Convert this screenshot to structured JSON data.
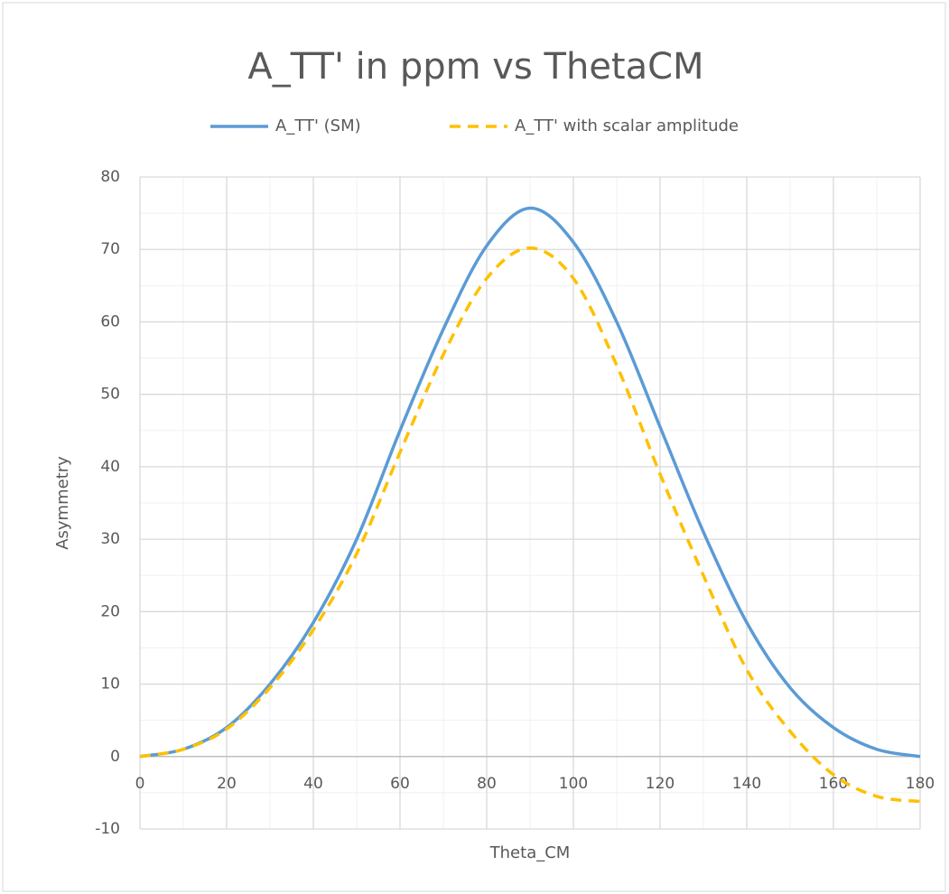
{
  "chart_data": {
    "type": "line",
    "title": "A_TT' in ppm vs ThetaCM",
    "x_label": "Theta_CM",
    "y_label": "Asymmetry",
    "x": [
      0,
      10,
      20,
      30,
      40,
      50,
      60,
      70,
      80,
      90,
      100,
      110,
      120,
      130,
      140,
      150,
      160,
      170,
      180
    ],
    "series": [
      {
        "name": "A_TT' (SM)",
        "color": "#5b9bd5",
        "dash": false,
        "values": [
          0,
          1,
          4,
          10,
          18.5,
          30,
          45,
          59,
          70.5,
          75.7,
          71,
          60,
          45.5,
          31,
          18.5,
          9.5,
          4,
          1,
          0
        ]
      },
      {
        "name": "A_TT' with scalar amplitude",
        "color": "#ffc000",
        "dash": true,
        "values": [
          0,
          1,
          3.8,
          9.5,
          17.5,
          28,
          42,
          55.5,
          66,
          70.2,
          66,
          54,
          39,
          25,
          12,
          3.5,
          -2.5,
          -5.5,
          -6.2
        ]
      }
    ],
    "xlim": [
      0,
      180
    ],
    "xticks": [
      0,
      20,
      40,
      60,
      80,
      100,
      120,
      140,
      160,
      180
    ],
    "ylim": [
      -10,
      80
    ],
    "yticks": [
      -10,
      0,
      10,
      20,
      30,
      40,
      50,
      60,
      70,
      80
    ],
    "grid": true,
    "minor_grid": true,
    "legend": "top"
  }
}
